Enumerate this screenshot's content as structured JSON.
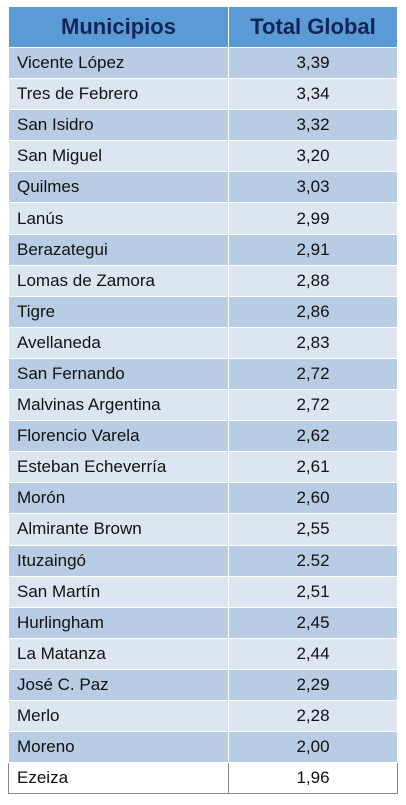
{
  "table": {
    "header": [
      "Municipios",
      "Total Global"
    ],
    "rows": [
      [
        "Vicente López",
        "3,39"
      ],
      [
        "Tres de Febrero",
        "3,34"
      ],
      [
        "San Isidro",
        "3,32"
      ],
      [
        "San Miguel",
        "3,20"
      ],
      [
        "Quilmes",
        "3,03"
      ],
      [
        "Lanús",
        "2,99"
      ],
      [
        "Berazategui",
        "2,91"
      ],
      [
        "Lomas de Zamora",
        "2,88"
      ],
      [
        "Tigre",
        "2,86"
      ],
      [
        "Avellaneda",
        "2,83"
      ],
      [
        "San Fernando",
        "2,72"
      ],
      [
        "Malvinas Argentina",
        "2,72"
      ],
      [
        "Florencio Varela",
        "2,62"
      ],
      [
        "Esteban Echeverría",
        "2,61"
      ],
      [
        "Morón",
        "2,60"
      ],
      [
        "Almirante Brown",
        "2,55"
      ],
      [
        "Ituzaingó",
        "2.52"
      ],
      [
        "San Martín",
        "2,51"
      ],
      [
        "Hurlingham",
        "2,45"
      ],
      [
        "La Matanza",
        "2,44"
      ],
      [
        "José C. Paz",
        "2,29"
      ],
      [
        "Merlo",
        "2,28"
      ],
      [
        "Moreno",
        "2,00"
      ],
      [
        "Ezeiza",
        "1,96"
      ]
    ]
  }
}
